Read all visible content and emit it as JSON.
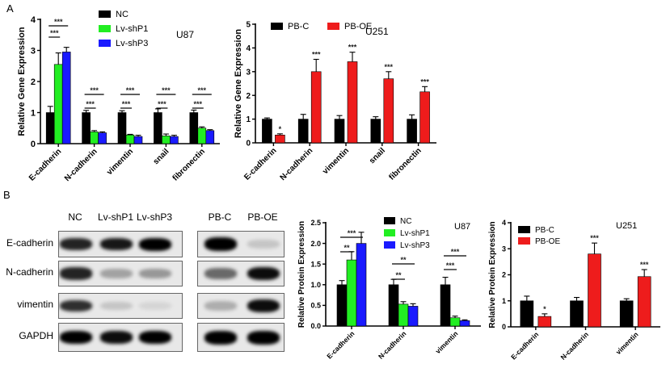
{
  "panels": {
    "A": "A",
    "B": "B"
  },
  "chart_data": [
    {
      "id": "A-U87-gene",
      "type": "bar",
      "title": "U87",
      "xlabel": "",
      "ylabel": "Relative Gene Expression",
      "ylim": [
        0,
        4
      ],
      "yticks": [
        0,
        1,
        2,
        3,
        4
      ],
      "categories": [
        "E-cadherin",
        "N-cadherin",
        "vimentin",
        "snail",
        "fibronectin"
      ],
      "series": [
        {
          "name": "NC",
          "color": "#000000",
          "values": [
            1.0,
            1.0,
            1.0,
            1.0,
            1.0
          ],
          "errors": [
            0.2,
            0.07,
            0.06,
            0.12,
            0.08
          ]
        },
        {
          "name": "Lv-shP1",
          "color": "#22ee22",
          "values": [
            2.55,
            0.38,
            0.28,
            0.25,
            0.5
          ],
          "errors": [
            0.37,
            0.04,
            0.02,
            0.06,
            0.04
          ]
        },
        {
          "name": "Lv-shP3",
          "color": "#1a1aff",
          "values": [
            2.95,
            0.35,
            0.23,
            0.23,
            0.42
          ],
          "errors": [
            0.15,
            0.03,
            0.04,
            0.04,
            0.03
          ]
        }
      ],
      "significance": [
        {
          "category": "E-cadherin",
          "short": "***",
          "long": "***"
        },
        {
          "category": "N-cadherin",
          "short": "***",
          "long": "***"
        },
        {
          "category": "vimentin",
          "short": "***",
          "long": "***"
        },
        {
          "category": "snail",
          "short": "***",
          "long": "***"
        },
        {
          "category": "fibronectin",
          "short": "***",
          "long": "***"
        }
      ],
      "legend_position": "top-center"
    },
    {
      "id": "A-U251-gene",
      "type": "bar",
      "title": "U251",
      "xlabel": "",
      "ylabel": "Relative Gene Expression",
      "ylim": [
        0,
        5
      ],
      "yticks": [
        0,
        1,
        2,
        3,
        4,
        5
      ],
      "categories": [
        "E-cadherin",
        "N-cadherin",
        "vimentin",
        "snail",
        "fibronectin"
      ],
      "series": [
        {
          "name": "PB-C",
          "color": "#000000",
          "values": [
            1.0,
            1.0,
            1.0,
            1.0,
            1.0
          ],
          "errors": [
            0.05,
            0.2,
            0.15,
            0.1,
            0.18
          ]
        },
        {
          "name": "PB-OE",
          "color": "#ee1c1c",
          "values": [
            0.33,
            3.0,
            3.42,
            2.7,
            2.15
          ],
          "errors": [
            0.05,
            0.52,
            0.4,
            0.3,
            0.22
          ]
        }
      ],
      "significance_labels": [
        "*",
        "***",
        "***",
        "***",
        "***"
      ],
      "legend_position": "top"
    },
    {
      "id": "B-U87-protein",
      "type": "bar",
      "title": "U87",
      "xlabel": "",
      "ylabel": "Relative Protein Expression",
      "ylim": [
        0,
        2.5
      ],
      "yticks": [
        "0.0",
        "0.5",
        "1.0",
        "1.5",
        "2.0",
        "2.5"
      ],
      "categories": [
        "E-cadherin",
        "N-cadherin",
        "vimentin"
      ],
      "series": [
        {
          "name": "NC",
          "color": "#000000",
          "values": [
            1.0,
            1.0,
            1.0
          ],
          "errors": [
            0.1,
            0.13,
            0.18
          ]
        },
        {
          "name": "Lv-shP1",
          "color": "#22ee22",
          "values": [
            1.6,
            0.53,
            0.2
          ],
          "errors": [
            0.2,
            0.06,
            0.04
          ]
        },
        {
          "name": "Lv-shP3",
          "color": "#1a1aff",
          "values": [
            2.0,
            0.48,
            0.13
          ],
          "errors": [
            0.27,
            0.06,
            0.02
          ]
        }
      ],
      "significance": [
        {
          "category": "E-cadherin",
          "short": "**",
          "long": "***"
        },
        {
          "category": "N-cadherin",
          "short": "**",
          "long": "**"
        },
        {
          "category": "vimentin",
          "short": "***",
          "long": "***"
        }
      ],
      "legend_position": "top-center"
    },
    {
      "id": "B-U251-protein",
      "type": "bar",
      "title": "U251",
      "xlabel": "",
      "ylabel": "Relative Protein Expression",
      "ylim": [
        0,
        4
      ],
      "yticks": [
        0,
        1,
        2,
        3,
        4
      ],
      "categories": [
        "E-cadherin",
        "N-cadherin",
        "vimentin"
      ],
      "series": [
        {
          "name": "PB-C",
          "color": "#000000",
          "values": [
            1.0,
            1.0,
            1.0
          ],
          "errors": [
            0.18,
            0.13,
            0.08
          ]
        },
        {
          "name": "PB-OE",
          "color": "#ee1c1c",
          "values": [
            0.4,
            2.8,
            1.93
          ],
          "errors": [
            0.1,
            0.42,
            0.27
          ]
        }
      ],
      "significance_labels": [
        "*",
        "***",
        "***"
      ],
      "legend_position": "top-left"
    }
  ],
  "blot": {
    "row_labels": [
      "E-cadherin",
      "N-cadherin",
      "vimentin",
      "GAPDH"
    ],
    "left_lanes": [
      "NC",
      "Lv-shP1",
      "Lv-shP3"
    ],
    "right_lanes": [
      "PB-C",
      "PB-OE"
    ],
    "left_intensity": [
      [
        0.85,
        0.9,
        1.0
      ],
      [
        0.85,
        0.3,
        0.35
      ],
      [
        0.8,
        0.15,
        0.08
      ],
      [
        1.0,
        0.95,
        1.0
      ]
    ],
    "right_intensity": [
      [
        1.0,
        0.15
      ],
      [
        0.55,
        0.95
      ],
      [
        0.25,
        0.95
      ],
      [
        1.0,
        1.0
      ]
    ]
  }
}
